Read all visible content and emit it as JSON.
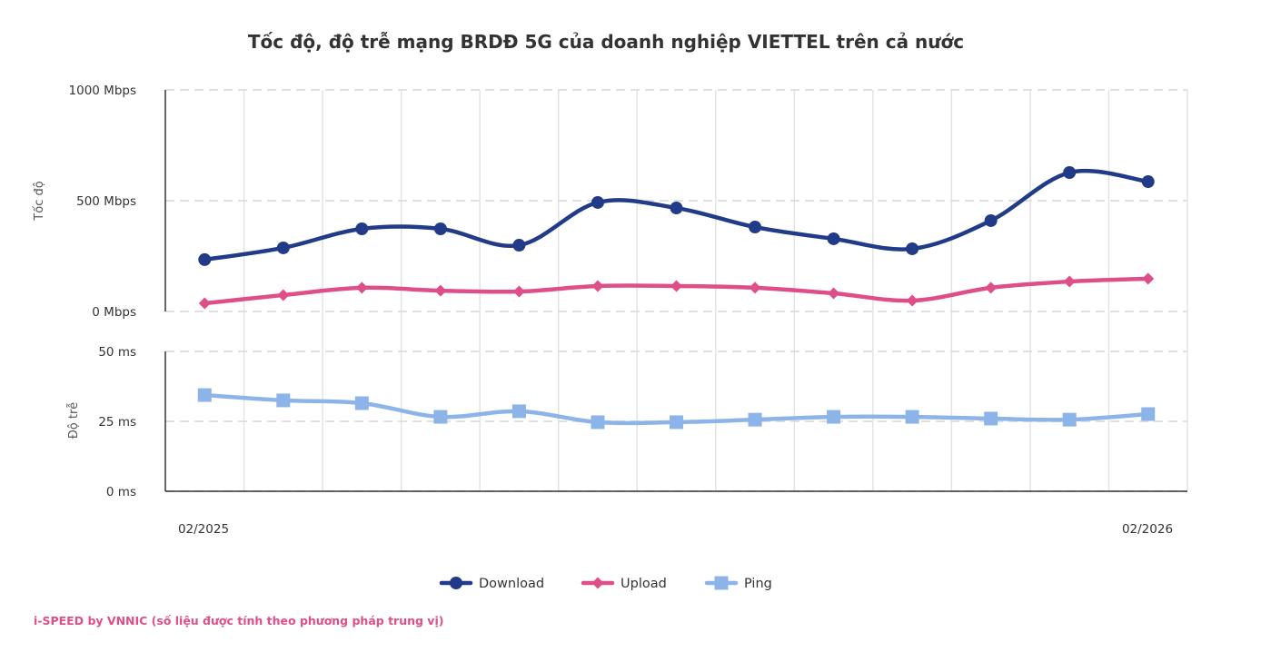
{
  "chart_data": {
    "type": "line",
    "title": "Tốc độ, độ trễ mạng BRDĐ 5G của doanh nghiệp VIETTEL trên cả nước",
    "x": [
      "02/2025",
      "03/2025",
      "04/2025",
      "05/2025",
      "06/2025",
      "07/2025",
      "08/2025",
      "09/2025",
      "10/2025",
      "11/2025",
      "12/2025",
      "01/2026",
      "02/2026"
    ],
    "xtick_labels": [
      "02/2025",
      "02/2026"
    ],
    "panels": [
      {
        "ylabel": "Tốc độ",
        "ylim": [
          0,
          1000
        ],
        "yticks": [
          0,
          500,
          1000
        ],
        "ytick_labels": [
          "0 Mbps",
          "500 Mbps",
          "1000 Mbps"
        ]
      },
      {
        "ylabel": "Độ trễ",
        "ylim": [
          0,
          50
        ],
        "yticks": [
          0,
          25,
          50
        ],
        "ytick_labels": [
          "0 ms",
          "25 ms",
          "50 ms"
        ]
      }
    ],
    "series": [
      {
        "name": "Download",
        "panel": 0,
        "color": "#213b88",
        "marker": "circle",
        "values": [
          234,
          287,
          373,
          373,
          299,
          492,
          467,
          381,
          328,
          283,
          410,
          627,
          586
        ]
      },
      {
        "name": "Upload",
        "panel": 0,
        "color": "#de4f8a",
        "marker": "diamond",
        "values": [
          37,
          74,
          107,
          94,
          90,
          115,
          115,
          107,
          82,
          49,
          107,
          135,
          148
        ]
      },
      {
        "name": "Ping",
        "panel": 1,
        "color": "#8db4e8",
        "marker": "square",
        "values": [
          34.4,
          32.5,
          31.5,
          26.6,
          28.6,
          24.7,
          24.7,
          25.6,
          26.6,
          26.6,
          26.0,
          25.6,
          27.6
        ]
      }
    ],
    "grid": true,
    "legend_position": "bottom"
  },
  "source": "i-SPEED by VNNIC (số liệu được tính theo phương pháp trung vị)"
}
